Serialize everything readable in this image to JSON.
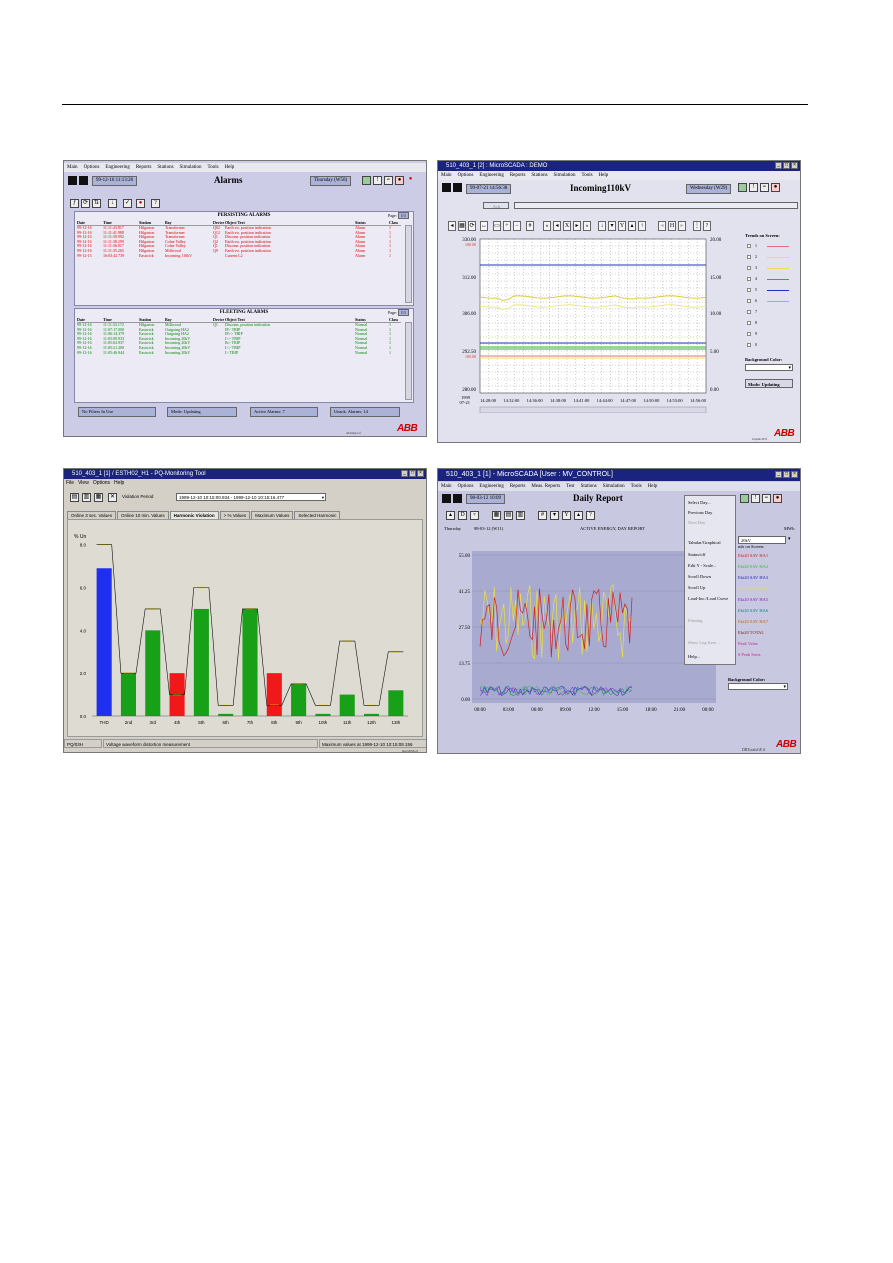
{
  "alarms": {
    "menu": [
      "Main",
      "Options",
      "Engineering",
      "Reports",
      "Stations",
      "Simulation",
      "Tools",
      "Help"
    ],
    "date": "99-12-16 11:13:26",
    "title": "Alarms",
    "day": "Thursday (W50)",
    "persisting": {
      "title": "PERSISTING ALARMS",
      "page_label": "Page:",
      "page": "1/1",
      "columns": [
        "Date",
        "Time",
        "Station",
        "Bay",
        "Device",
        "Object Text",
        "Status",
        "Class"
      ],
      "rows": [
        [
          "99-12-16",
          "11:11:43.817",
          "Hilgarton",
          "Transformer",
          "Q02",
          "Earth sw. position indication",
          "Alarm",
          "1"
        ],
        [
          "99-12-16",
          "11:11:41.988",
          "Hilgarton",
          "Transformer",
          "Q12",
          "Earth sw. position indication",
          "Alarm",
          "1"
        ],
        [
          "99-12-16",
          "11:11:39.992",
          "Hilgarton",
          "Transformer",
          "Q1",
          "Disconn. position indication",
          "Alarm",
          "1"
        ],
        [
          "99-12-16",
          "11:11:38.299",
          "Hilgarton",
          "Colne Valley",
          "Q2",
          "Earth sw. position indication",
          "Alarm",
          "1"
        ],
        [
          "99-12-16",
          "11:11:36.817",
          "Hilgarton",
          "Colne Valley",
          "Q1",
          "Disconn. position indication",
          "Alarm",
          "1"
        ],
        [
          "99-12-16",
          "11:11:35.265",
          "Hilgarton",
          "Millwood",
          "Q9",
          "Earth sw. position indication",
          "Alarm",
          "1"
        ],
        [
          "99-12-15",
          "16:03:42.739",
          "Eastwick",
          "Incoming 110kV",
          "",
          "Current L2",
          "Alarm",
          "1"
        ]
      ]
    },
    "fleeting": {
      "title": "FLEETING ALARMS",
      "page_label": "Page:",
      "page": "1/1",
      "columns": [
        "Date",
        "Time",
        "Station",
        "Bay",
        "Device",
        "Object Text",
        "Status",
        "Class"
      ],
      "rows": [
        [
          "99-12-16",
          "11:11:33.172",
          "Hilgarton",
          "Millwood",
          "Q1",
          "Disconn. position indication",
          "Normal",
          "1"
        ],
        [
          "99-12-16",
          "11:07:17.000",
          "Eastwick",
          "Outgoing HA2",
          "",
          "IP> TRIP",
          "Normal",
          "1"
        ],
        [
          "99-12-16",
          "11:06:14.379",
          "Eastwick",
          "Outgoing HA2",
          "",
          "IP>> TRIP",
          "Normal",
          "1"
        ],
        [
          "99-12-16",
          "11:05:09.933",
          "Eastwick",
          "Incoming 20kV",
          "",
          "I>> TRIP",
          "Normal",
          "1"
        ],
        [
          "99-12-16",
          "11:05:02.937",
          "Eastwick",
          "Incoming 20kV",
          "",
          "Ib> TRIP",
          "Normal",
          "1"
        ],
        [
          "99-12-16",
          "11:05:21.200",
          "Eastwick",
          "Incoming 20kV",
          "",
          "I>> TRIP",
          "Normal",
          "1"
        ],
        [
          "99-12-16",
          "11:05:46.944",
          "Eastwick",
          "Incoming 20kV",
          "",
          "I> TRIP",
          "Normal",
          "1"
        ]
      ]
    },
    "status": [
      "No Filters In Use",
      "Mode: Updating",
      "Active Alarms: 7",
      "Unack. Alarms: 14"
    ],
    "footer_file": "ALTemp1.tf",
    "logo": "ABB"
  },
  "trend": {
    "window_title": "510_403_1 [2] : MicroSCADA : DEMO",
    "menu": [
      "Main",
      "Options",
      "Engineering",
      "Reports",
      "Stations",
      "Simulation",
      "Tools",
      "Help"
    ],
    "date": "99-07-21 14:56:38",
    "title": "Incoming110kV",
    "day": "Wednesday (W29)",
    "ack": "Ack.",
    "toolbar_letters": [
      "X",
      "Y",
      "H"
    ],
    "left_ticks": [
      "330.00",
      "312.00",
      "306.00",
      "292.50",
      "280.00"
    ],
    "left_ticks_red": [
      "100.00",
      "",
      "",
      "100.00",
      ""
    ],
    "right_ticks": [
      "20.00",
      "15.00",
      "10.00",
      "5.00",
      "0.00"
    ],
    "x_ticks": [
      "14:28:00",
      "14:32:00",
      "14:36:00",
      "14:38:00",
      "14:41:00",
      "14:44:00",
      "14:47:00",
      "14:50:00",
      "14:53:00",
      "14:56:00"
    ],
    "x_start": "1999\n07-21",
    "legend_title": "Trends on Screen:",
    "legend": [
      {
        "n": "1",
        "color": "#e07080"
      },
      {
        "n": "2",
        "color": "#e8e050"
      },
      {
        "n": "3",
        "color": "#e8e050"
      },
      {
        "n": "4",
        "color": "#30b030"
      },
      {
        "n": "5",
        "color": "#2030c0"
      },
      {
        "n": "6",
        "color": "#a0a0ff"
      },
      {
        "n": "7",
        "color": ""
      },
      {
        "n": "8",
        "color": ""
      },
      {
        "n": "9",
        "color": ""
      },
      {
        "n": "0",
        "color": ""
      }
    ],
    "bg_label": "Background Color:",
    "mode": "Mode: Updating",
    "footer_file": "Graphic1F.tf",
    "logo": "ABB"
  },
  "harmonic": {
    "window_title": "510_403_1 [1] / ESTH02_H1 - PQ-Monitoring Tool",
    "menu": [
      "File",
      "View",
      "Options",
      "Help"
    ],
    "violation_label": "Violation Period",
    "violation_value": "1999-12-10 10:15:00.934 - 1999-12-10 10:15:16.477",
    "tabs": [
      "Online 3 sec. Values",
      "Online 10 min. Values",
      "Harmonic Violation",
      "> % Values",
      "Maximum Values",
      "Selected Harmonic"
    ],
    "active_tab": "Harmonic Violation",
    "ylabel": "% Un",
    "y_ticks": [
      "8.0",
      "6.0",
      "4.0",
      "2.0",
      "0.0"
    ],
    "status_left": "PQ/03H",
    "status_mid": "Voltage waveform distortion measurement",
    "status_right": "Maximum values at 1999-12-10 10:15:08.156",
    "footer_file": "HarmPMo.tf"
  },
  "harmonic_chart": {
    "type": "bar",
    "categories": [
      "THD",
      "2nd",
      "3rd",
      "4th",
      "5th",
      "6th",
      "7th",
      "8th",
      "9th",
      "10th",
      "11th",
      "12th",
      "13th"
    ],
    "values": [
      6.9,
      2.0,
      4.0,
      2.0,
      5.0,
      0.1,
      5.0,
      2.0,
      1.5,
      0.1,
      1.0,
      0.1,
      1.2
    ],
    "bar_colors": [
      "#1f2ff0",
      "#18a018",
      "#18a018",
      "#f01818",
      "#18a018",
      "#18a018",
      "#18a018",
      "#f01818",
      "#18a018",
      "#18a018",
      "#18a018",
      "#18a018",
      "#18a018"
    ],
    "limits": [
      8.0,
      2.0,
      5.0,
      1.0,
      6.0,
      0.5,
      5.0,
      0.5,
      1.5,
      0.5,
      3.5,
      0.5,
      3.0
    ],
    "ylim": [
      0,
      8.5
    ],
    "ylabel": "% Un"
  },
  "daily": {
    "window_title": "510_403_1 [1] - MicroSCADA [User : MV_CONTROL]",
    "menu": [
      "Main",
      "Options",
      "Engineering",
      "Reports",
      "Meas. Reports",
      "Test",
      "Stations",
      "Simulation",
      "Tools",
      "Help"
    ],
    "date": "98-03-12 10:09",
    "title": "Daily Report",
    "header_left": "Thursday",
    "header_mid_date": "98-03-12 (W11)",
    "header_mid": "ACTIVE ENERGY, DAY REPORT",
    "header_right": "MWh",
    "right_box": "20kV",
    "tools_menu": [
      {
        "label": "Select Day...",
        "enabled": true
      },
      {
        "label": "Previous Day",
        "enabled": true
      },
      {
        "label": "Next Day",
        "enabled": false
      },
      {
        "label": "Tabular/Graphical",
        "enabled": true
      },
      {
        "label": "Status/off",
        "enabled": true
      },
      {
        "label": "Edit Y - Scale...",
        "enabled": true
      },
      {
        "label": "Scroll Down",
        "enabled": true
      },
      {
        "label": "Scroll Up",
        "enabled": true
      },
      {
        "label": "Load-Inc./Load Curve",
        "enabled": true
      },
      {
        "label": "Printing",
        "enabled": false
      },
      {
        "label": "Show Log Item ...",
        "enabled": false
      },
      {
        "label": "Help...",
        "enabled": true
      }
    ],
    "legend_title": "nds on Screen:",
    "legend": [
      {
        "label": "Ekt20 SAV HA1",
        "color": "#d02020"
      },
      {
        "label": "Ekt20 SAV HA2",
        "color": "#30c030"
      },
      {
        "label": "Ekt20 SAV HA3",
        "color": "#2020d0"
      },
      {
        "label": "Ekt20 SAV HA4",
        "color": "#e8e040"
      },
      {
        "label": "Ekt20 SAV HA5",
        "color": "#8020c0"
      },
      {
        "label": "Ekt20 SAV HA6",
        "color": "#108080"
      },
      {
        "label": "Ekt20 SAV HA7",
        "color": "#d06000"
      },
      {
        "label": "Ekt20 TOTAL",
        "color": "#802020"
      },
      {
        "label": "Peak Value",
        "color": "#d02090"
      },
      {
        "label": "0 Peak Sorts",
        "color": "#d02090"
      }
    ],
    "bg_label": "Background Color:",
    "y_ticks": [
      "55.00",
      "41.25",
      "27.50",
      "13.75",
      "0.00"
    ],
    "x_ticks": [
      "00:00",
      "03:00",
      "06:00",
      "09:00",
      "12:00",
      "15:00",
      "18:00",
      "21:00",
      "00:00"
    ],
    "footer_file": "DRTotalsGF.tf",
    "logo": "ABB"
  }
}
